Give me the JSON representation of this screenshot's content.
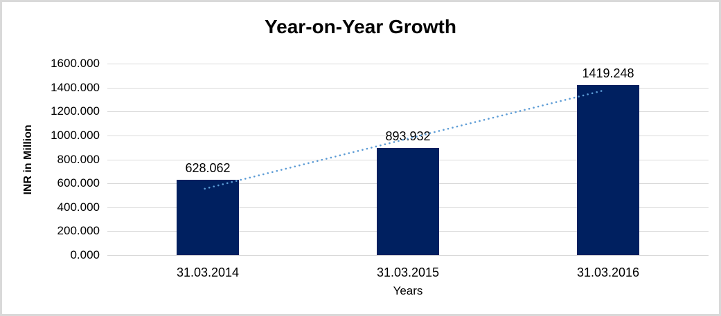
{
  "chart_data": {
    "type": "bar",
    "title": "Year-on-Year Growth",
    "xlabel": "Years",
    "ylabel": "INR in Million",
    "categories": [
      "31.03.2014",
      "31.03.2015",
      "31.03.2016"
    ],
    "values": [
      628.062,
      893.932,
      1419.248
    ],
    "data_labels": [
      "628.062",
      "893.932",
      "1419.248"
    ],
    "ylim": [
      0,
      1600
    ],
    "ytick_step": 200,
    "ytick_labels": [
      "0.000",
      "200.000",
      "400.000",
      "600.000",
      "800.000",
      "1000.000",
      "1200.000",
      "1400.000",
      "1600.000"
    ],
    "grid": true,
    "legend": "none",
    "trendline": {
      "type": "linear",
      "style": "dotted",
      "start_value": 555,
      "end_value": 1380
    }
  },
  "colors": {
    "bar": "#002060",
    "trendline": "#5B9BD5",
    "gridline": "#D9D9D9",
    "border": "#D9D9D9",
    "text": "#000000",
    "background": "#FFFFFF"
  }
}
